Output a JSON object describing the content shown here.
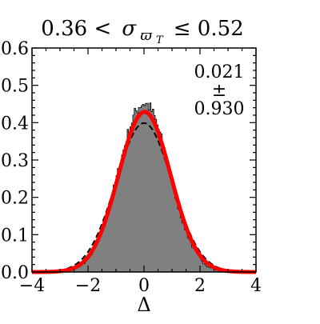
{
  "chart_data": {
    "type": "histogram",
    "title": {
      "left": "0.36 <",
      "symbol": "σ",
      "subscript": "ϖ",
      "subsubscript": "T",
      "right": "≤ 0.52"
    },
    "xlabel": "Δ",
    "ylabel": "",
    "xlim": [
      -4,
      4
    ],
    "ylim": [
      0,
      0.6
    ],
    "x_ticks": [
      -4,
      -2,
      0,
      2,
      4
    ],
    "x_tick_labels": [
      "−4",
      "−2",
      "0",
      "2",
      "4"
    ],
    "y_ticks": [
      0.0,
      0.1,
      0.2,
      0.3,
      0.4,
      0.5,
      0.6
    ],
    "y_tick_labels": [
      "0.0",
      "0.1",
      "0.2",
      "0.3",
      "0.4",
      "0.5",
      "0.6"
    ],
    "annotation": {
      "mean": "0.021",
      "pm": "±",
      "sigma": "0.930"
    },
    "histogram": {
      "bin_edges_range": [
        -3.0,
        3.0
      ],
      "bin_width": 0.05,
      "description_values": "normalized density of Δ, approximately Gaussian with peak ~0.45 near Δ=0"
    },
    "fit_curve": {
      "mu": 0.021,
      "sigma": 0.93,
      "color": "#ff0000"
    },
    "reference_curve": {
      "mu": 0.0,
      "sigma": 1.0,
      "style": "dashed",
      "color": "#000000"
    },
    "colors": {
      "histogram_fill": "#808080",
      "fit": "#ff0000",
      "reference": "#000000"
    }
  }
}
